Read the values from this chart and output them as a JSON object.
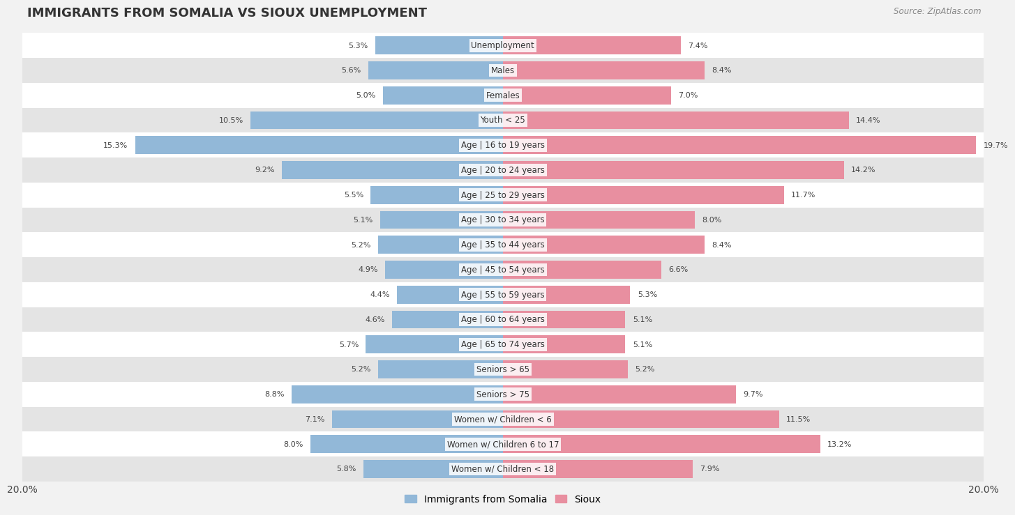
{
  "title": "IMMIGRANTS FROM SOMALIA VS SIOUX UNEMPLOYMENT",
  "source": "Source: ZipAtlas.com",
  "categories": [
    "Unemployment",
    "Males",
    "Females",
    "Youth < 25",
    "Age | 16 to 19 years",
    "Age | 20 to 24 years",
    "Age | 25 to 29 years",
    "Age | 30 to 34 years",
    "Age | 35 to 44 years",
    "Age | 45 to 54 years",
    "Age | 55 to 59 years",
    "Age | 60 to 64 years",
    "Age | 65 to 74 years",
    "Seniors > 65",
    "Seniors > 75",
    "Women w/ Children < 6",
    "Women w/ Children 6 to 17",
    "Women w/ Children < 18"
  ],
  "somalia_values": [
    5.3,
    5.6,
    5.0,
    10.5,
    15.3,
    9.2,
    5.5,
    5.1,
    5.2,
    4.9,
    4.4,
    4.6,
    5.7,
    5.2,
    8.8,
    7.1,
    8.0,
    5.8
  ],
  "sioux_values": [
    7.4,
    8.4,
    7.0,
    14.4,
    19.7,
    14.2,
    11.7,
    8.0,
    8.4,
    6.6,
    5.3,
    5.1,
    5.1,
    5.2,
    9.7,
    11.5,
    13.2,
    7.9
  ],
  "somalia_color": "#92b8d8",
  "sioux_color": "#e88fa0",
  "background_color": "#f2f2f2",
  "row_light_color": "#ffffff",
  "row_dark_color": "#e4e4e4",
  "xlim": 20.0,
  "legend_somalia": "Immigrants from Somalia",
  "legend_sioux": "Sioux",
  "bar_height": 0.72,
  "label_fontsize": 8.5,
  "value_fontsize": 8.0,
  "title_fontsize": 13,
  "source_fontsize": 8.5
}
